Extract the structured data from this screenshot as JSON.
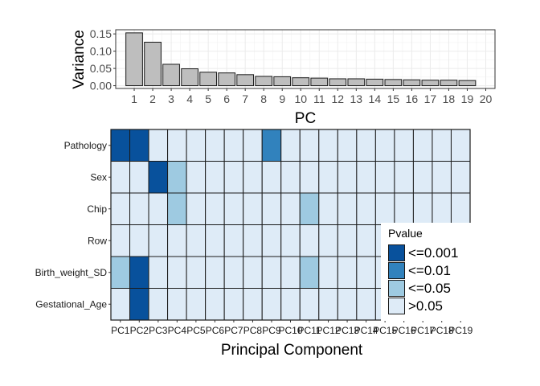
{
  "chart_data": [
    {
      "type": "bar",
      "title": "",
      "xlabel": "PC",
      "ylabel": "Variance",
      "categories": [
        1,
        2,
        3,
        4,
        5,
        6,
        7,
        8,
        9,
        10,
        11,
        12,
        13,
        14,
        15,
        16,
        17,
        18,
        19
      ],
      "x_ticks": [
        1,
        2,
        3,
        4,
        5,
        6,
        7,
        8,
        9,
        10,
        11,
        12,
        13,
        14,
        15,
        16,
        17,
        18,
        19,
        20
      ],
      "values": [
        0.153,
        0.126,
        0.062,
        0.049,
        0.039,
        0.037,
        0.032,
        0.027,
        0.026,
        0.023,
        0.022,
        0.02,
        0.02,
        0.019,
        0.018,
        0.017,
        0.016,
        0.016,
        0.015
      ],
      "y_ticks": [
        0.0,
        0.05,
        0.1,
        0.15
      ],
      "y_tick_labels": [
        "0.00",
        "0.05",
        "0.10",
        "0.15"
      ],
      "xlim": [
        0,
        20.5
      ],
      "ylim": [
        -0.008,
        0.162
      ],
      "grid": true,
      "bar_color": "#bebebe",
      "bar_edge": "#1a1a1a"
    },
    {
      "type": "heatmap",
      "title": "",
      "xlabel": "Principal Component",
      "ylabel": "",
      "x": [
        "PC1",
        "PC2",
        "PC3",
        "PC4",
        "PC5",
        "PC6",
        "PC7",
        "PC8",
        "PC9",
        "PC10",
        "PC11",
        "PC12",
        "PC13",
        "PC14",
        "PC15",
        "PC16",
        "PC17",
        "PC18",
        "PC19"
      ],
      "y": [
        "Pathology",
        "Sex",
        "Chip",
        "Row",
        "Birth_weight_SD",
        "Gestational_Age"
      ],
      "values": [
        [
          "<=0.001",
          "<=0.001",
          ">0.05",
          ">0.05",
          ">0.05",
          ">0.05",
          ">0.05",
          ">0.05",
          "<=0.01",
          ">0.05",
          ">0.05",
          ">0.05",
          ">0.05",
          ">0.05",
          ">0.05",
          ">0.05",
          ">0.05",
          ">0.05",
          ">0.05"
        ],
        [
          ">0.05",
          ">0.05",
          "<=0.001",
          "<=0.05",
          ">0.05",
          ">0.05",
          ">0.05",
          ">0.05",
          ">0.05",
          ">0.05",
          ">0.05",
          ">0.05",
          ">0.05",
          ">0.05",
          ">0.05",
          ">0.05",
          ">0.05",
          ">0.05",
          ">0.05"
        ],
        [
          ">0.05",
          ">0.05",
          ">0.05",
          "<=0.05",
          ">0.05",
          ">0.05",
          ">0.05",
          ">0.05",
          ">0.05",
          ">0.05",
          "<=0.05",
          ">0.05",
          ">0.05",
          ">0.05",
          ">0.05",
          ">0.05",
          ">0.05",
          ">0.05",
          ">0.05"
        ],
        [
          ">0.05",
          ">0.05",
          ">0.05",
          ">0.05",
          ">0.05",
          ">0.05",
          ">0.05",
          ">0.05",
          ">0.05",
          ">0.05",
          ">0.05",
          ">0.05",
          ">0.05",
          ">0.05",
          ">0.05",
          ">0.05",
          ">0.05",
          ">0.05",
          ">0.05"
        ],
        [
          "<=0.05",
          "<=0.001",
          ">0.05",
          ">0.05",
          ">0.05",
          ">0.05",
          ">0.05",
          ">0.05",
          ">0.05",
          ">0.05",
          "<=0.05",
          ">0.05",
          ">0.05",
          ">0.05",
          ">0.05",
          ">0.05",
          ">0.05",
          ">0.05",
          ">0.05"
        ],
        [
          ">0.05",
          "<=0.001",
          ">0.05",
          ">0.05",
          ">0.05",
          ">0.05",
          ">0.05",
          ">0.05",
          ">0.05",
          ">0.05",
          ">0.05",
          ">0.05",
          ">0.05",
          ">0.05",
          ">0.05",
          ">0.05",
          ">0.05",
          ">0.05",
          ">0.05"
        ]
      ],
      "legend": {
        "title": "Pvalue",
        "placement": "bottom-right",
        "items": [
          {
            "label": "<=0.001",
            "color": "#08519c"
          },
          {
            "label": "<=0.01",
            "color": "#3182bd"
          },
          {
            "label": "<=0.05",
            "color": "#9ecae1"
          },
          {
            "label": ">0.05",
            "color": "#deebf7"
          }
        ]
      }
    }
  ]
}
